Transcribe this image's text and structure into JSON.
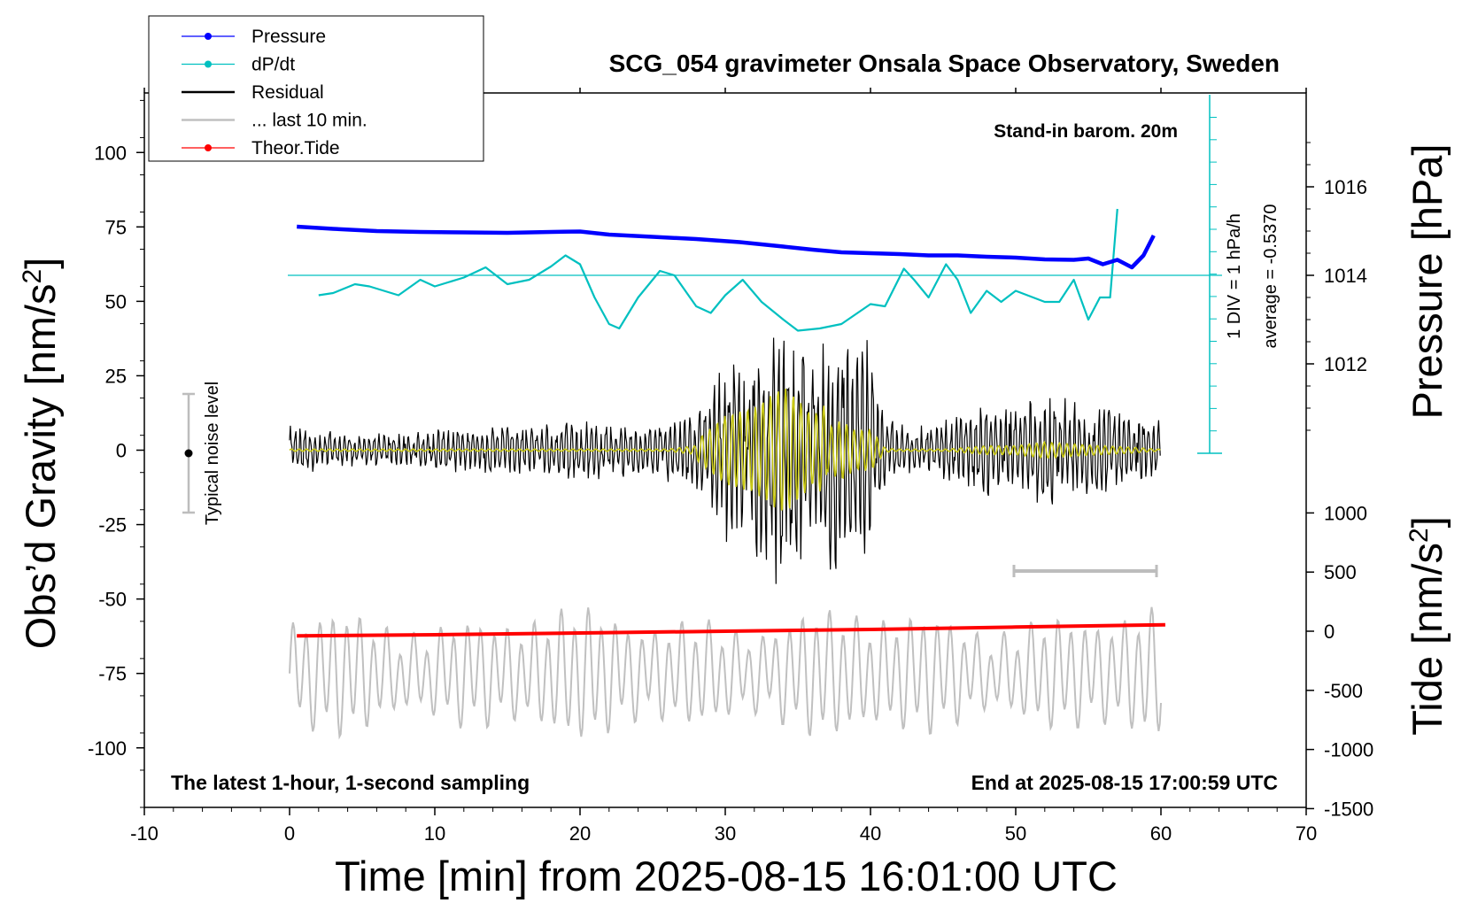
{
  "title": "SCG_054 gravimeter Onsala Space Observatory, Sweden",
  "note_top_right": "Stand-in barom. 20m",
  "note_bottom_left": "The latest 1-hour, 1-second sampling",
  "note_bottom_right": "End at 2025-08-15 17:00:59 UTC",
  "noise_label": "Typical noise level",
  "dpdt_scale_label": "1 DIV = 1 hPa/h",
  "dpdt_average_label": "average = -0.5370",
  "legend": [
    {
      "label": "Pressure",
      "color": "#0000ff",
      "marker": true
    },
    {
      "label": "dP/dt",
      "color": "#00c0c0",
      "marker": true
    },
    {
      "label": "Residual",
      "color": "#000000",
      "marker": false
    },
    {
      "label": "... last 10 min.",
      "color": "#c0c0c0",
      "marker": false
    },
    {
      "label": "Theor.Tide",
      "color": "#ff0000",
      "marker": true
    }
  ],
  "colors": {
    "pressure": "#0000ff",
    "dpdt": "#00c0c0",
    "residual": "#000000",
    "residual_filtered": "#c8c814",
    "last10": "#c0c0c0",
    "tide": "#ff0000"
  },
  "chart_data": {
    "type": "line",
    "title": "SCG_054 gravimeter Onsala Space Observatory, Sweden",
    "xlabel": "Time [min] from 2025-08-15 16:01:00 UTC",
    "ylabel_left": "Obs'd Gravity [nm/s²]",
    "ylabel_right_top": "Pressure [hPa]",
    "ylabel_right_bottom": "Tide [nm/s²]",
    "xlim": [
      -10,
      70
    ],
    "ylim_left": [
      -120,
      120
    ],
    "x_ticks": [
      "-10",
      "0",
      "10",
      "20",
      "30",
      "40",
      "50",
      "60",
      "70"
    ],
    "y_ticks_left": [
      "100",
      "75",
      "50",
      "25",
      "0",
      "-25",
      "-50",
      "-75",
      "-100"
    ],
    "y_ticks_pressure": [
      "1016",
      "1014",
      "1012"
    ],
    "y_ticks_tide": [
      "1000",
      "500",
      "0",
      "-500",
      "-1000",
      "-1500"
    ],
    "grid": false,
    "legend_position": "top-left",
    "series": [
      {
        "name": "Pressure",
        "units": "hPa",
        "points": [
          [
            0.5,
            1015.1
          ],
          [
            3,
            1015.05
          ],
          [
            6,
            1015.0
          ],
          [
            9,
            1014.98
          ],
          [
            12,
            1014.97
          ],
          [
            15,
            1014.96
          ],
          [
            18,
            1014.98
          ],
          [
            20,
            1014.99
          ],
          [
            22,
            1014.92
          ],
          [
            25,
            1014.87
          ],
          [
            28,
            1014.82
          ],
          [
            31,
            1014.75
          ],
          [
            34,
            1014.65
          ],
          [
            36,
            1014.58
          ],
          [
            38,
            1014.52
          ],
          [
            40,
            1014.5
          ],
          [
            42,
            1014.48
          ],
          [
            44,
            1014.45
          ],
          [
            46,
            1014.45
          ],
          [
            48,
            1014.42
          ],
          [
            50,
            1014.4
          ],
          [
            52,
            1014.36
          ],
          [
            54,
            1014.35
          ],
          [
            55,
            1014.38
          ],
          [
            56,
            1014.25
          ],
          [
            57,
            1014.35
          ],
          [
            58,
            1014.18
          ],
          [
            58.8,
            1014.45
          ],
          [
            59.5,
            1014.9
          ]
        ]
      },
      {
        "name": "dP/dt",
        "units": "hPa/h",
        "points": [
          [
            2,
            -0.45
          ],
          [
            3,
            -0.4
          ],
          [
            4.5,
            -0.2
          ],
          [
            5.5,
            -0.25
          ],
          [
            7.5,
            -0.45
          ],
          [
            9,
            -0.1
          ],
          [
            10,
            -0.25
          ],
          [
            12,
            -0.05
          ],
          [
            13.5,
            0.18
          ],
          [
            15,
            -0.2
          ],
          [
            16.5,
            -0.1
          ],
          [
            18,
            0.2
          ],
          [
            19,
            0.45
          ],
          [
            20,
            0.25
          ],
          [
            21,
            -0.5
          ],
          [
            22,
            -1.1
          ],
          [
            22.7,
            -1.2
          ],
          [
            24,
            -0.5
          ],
          [
            25.5,
            0.1
          ],
          [
            26.5,
            0.0
          ],
          [
            28,
            -0.7
          ],
          [
            29,
            -0.85
          ],
          [
            30,
            -0.45
          ],
          [
            31.2,
            -0.1
          ],
          [
            32.5,
            -0.6
          ],
          [
            34,
            -1.0
          ],
          [
            35,
            -1.25
          ],
          [
            36.5,
            -1.2
          ],
          [
            38,
            -1.1
          ],
          [
            40,
            -0.65
          ],
          [
            41,
            -0.7
          ],
          [
            42.3,
            0.15
          ],
          [
            43,
            -0.1
          ],
          [
            44,
            -0.5
          ],
          [
            45.2,
            0.25
          ],
          [
            46,
            -0.1
          ],
          [
            46.9,
            -0.85
          ],
          [
            48,
            -0.35
          ],
          [
            49,
            -0.6
          ],
          [
            50,
            -0.35
          ],
          [
            52,
            -0.6
          ],
          [
            53,
            -0.6
          ],
          [
            54,
            -0.1
          ],
          [
            55,
            -1.0
          ],
          [
            55.8,
            -0.5
          ],
          [
            56.5,
            -0.5
          ],
          [
            57,
            1.5
          ]
        ]
      },
      {
        "name": "Residual",
        "units": "nm/s²",
        "description_envelope": [
          [
            0,
            8
          ],
          [
            5,
            5
          ],
          [
            10,
            7
          ],
          [
            15,
            8
          ],
          [
            20,
            10
          ],
          [
            25,
            8
          ],
          [
            28,
            15
          ],
          [
            30,
            30
          ],
          [
            32,
            35
          ],
          [
            34,
            48
          ],
          [
            35,
            40
          ],
          [
            36,
            30
          ],
          [
            37,
            38
          ],
          [
            38,
            50
          ],
          [
            39,
            35
          ],
          [
            40,
            38
          ],
          [
            41,
            12
          ],
          [
            43,
            8
          ],
          [
            45,
            10
          ],
          [
            48,
            15
          ],
          [
            50,
            15
          ],
          [
            52,
            20
          ],
          [
            55,
            16
          ],
          [
            58,
            13
          ],
          [
            60,
            10
          ]
        ],
        "extremes": {
          "min": -53,
          "max": 50
        }
      },
      {
        "name": "... last 10 min.",
        "units": "nm/s²",
        "note": "repeating trace displayed between about -55 and -95 nm/s² on the gravity axis"
      },
      {
        "name": "Theor.Tide",
        "units": "nm/s²",
        "points": [
          [
            0.5,
            -40
          ],
          [
            10,
            -30
          ],
          [
            20,
            -15
          ],
          [
            30,
            0
          ],
          [
            40,
            15
          ],
          [
            50,
            35
          ],
          [
            60.3,
            55
          ]
        ]
      }
    ]
  }
}
